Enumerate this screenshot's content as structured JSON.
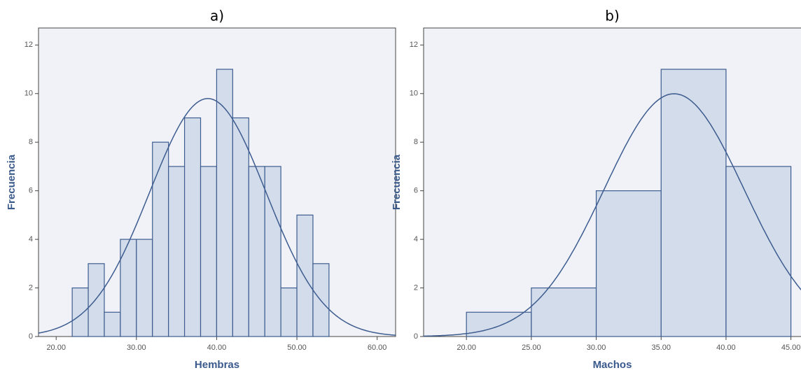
{
  "chart_data": [
    {
      "type": "histogram",
      "title": "a)",
      "xlabel": "Hembras",
      "ylabel": "Frecuencia",
      "bins": [
        22,
        24,
        26,
        28,
        30,
        32,
        34,
        36,
        38,
        40,
        42,
        44,
        46,
        48,
        50,
        52,
        54
      ],
      "values": [
        2,
        3,
        1,
        4,
        4,
        8,
        7,
        9,
        7,
        11,
        9,
        7,
        7,
        2,
        5,
        3
      ],
      "color": "#d3dcea",
      "edge_color": "#3d5c8f",
      "curve": {
        "mean": 38.9,
        "sd": 7.25
      },
      "xlim": [
        17.8,
        62.3
      ],
      "xticks": [
        {
          "value": 20,
          "label": "20.00"
        },
        {
          "value": 30,
          "label": "30.00"
        },
        {
          "value": 40,
          "label": "40.00"
        },
        {
          "value": 50,
          "label": "50.00"
        },
        {
          "value": 60,
          "label": "60.00"
        }
      ],
      "ylim": [
        0,
        12.7
      ],
      "yticks": [
        0,
        2,
        4,
        6,
        8,
        10,
        12
      ]
    },
    {
      "type": "histogram",
      "title": "b)",
      "xlabel": "Machos",
      "ylabel": "Frecuencia",
      "bins": [
        20,
        25,
        30,
        35,
        40,
        45
      ],
      "values": [
        1,
        2,
        6,
        11,
        7
      ],
      "color": "#d3dcea",
      "edge_color": "#3d5c8f",
      "curve": {
        "mean": 36.0,
        "sd": 5.39
      },
      "xlim": [
        16.7,
        46.1
      ],
      "xticks": [
        {
          "value": 20,
          "label": "20.00"
        },
        {
          "value": 25,
          "label": "25.00"
        },
        {
          "value": 30,
          "label": "30.00"
        },
        {
          "value": 35,
          "label": "35.00"
        },
        {
          "value": 40,
          "label": "40.00"
        },
        {
          "value": 45,
          "label": "45.00"
        }
      ],
      "ylim": [
        0,
        12.7
      ],
      "yticks": [
        0,
        2,
        4,
        6,
        8,
        10,
        12
      ]
    }
  ]
}
